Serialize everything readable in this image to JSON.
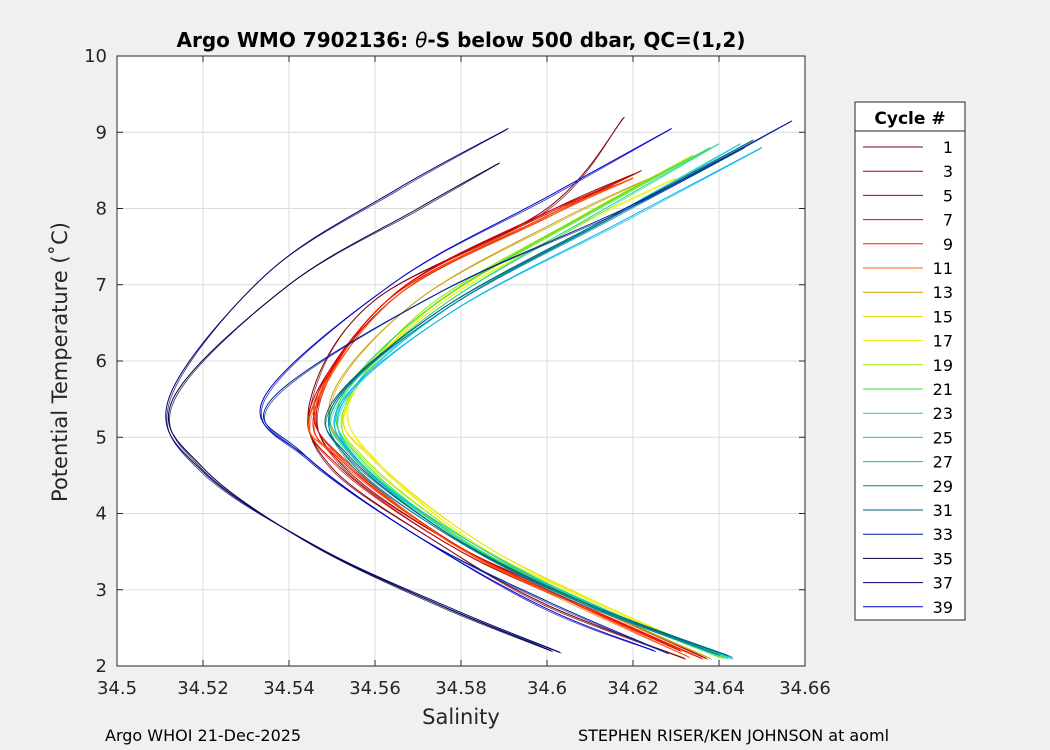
{
  "chart_data": {
    "type": "line",
    "title_prefix": "Argo WMO 7902136: ",
    "title_theta": "θ",
    "title_suffix": "-S below 500 dbar,  QC=(1,2)",
    "xlabel": "Salinity",
    "ylabel": "Potential Temperature (˚C)",
    "xlim": [
      34.5,
      34.66
    ],
    "ylim": [
      2,
      10
    ],
    "xticks": [
      34.5,
      34.52,
      34.54,
      34.56,
      34.58,
      34.6,
      34.62,
      34.64,
      34.66
    ],
    "xtick_labels": [
      "34.5",
      "34.52",
      "34.54",
      "34.56",
      "34.58",
      "34.6",
      "34.62",
      "34.64",
      "34.66"
    ],
    "yticks": [
      2,
      3,
      4,
      5,
      6,
      7,
      8,
      9,
      10
    ],
    "ytick_labels": [
      "2",
      "3",
      "4",
      "5",
      "6",
      "7",
      "8",
      "9",
      "10"
    ],
    "grid": true,
    "legend_title": "Cycle #",
    "legend_position": "right-outside",
    "series": [
      {
        "name": "1",
        "color": "#80000f",
        "points": [
          [
            34.618,
            9.2
          ],
          [
            34.6,
            8.0
          ],
          [
            34.56,
            6.8
          ],
          [
            34.545,
            5.5
          ],
          [
            34.55,
            4.6
          ],
          [
            34.575,
            3.6
          ],
          [
            34.6,
            2.8
          ],
          [
            34.632,
            2.1
          ]
        ]
      },
      {
        "name": "3",
        "color": "#a00000",
        "points": [
          [
            34.62,
            8.45
          ],
          [
            34.6,
            7.95
          ],
          [
            34.565,
            6.9
          ],
          [
            34.547,
            5.5
          ],
          [
            34.553,
            4.6
          ],
          [
            34.58,
            3.55
          ],
          [
            34.61,
            2.8
          ],
          [
            34.637,
            2.1
          ]
        ]
      },
      {
        "name": "5",
        "color": "#c00000",
        "points": [
          [
            34.622,
            8.5
          ],
          [
            34.6,
            7.9
          ],
          [
            34.565,
            6.85
          ],
          [
            34.545,
            5.4
          ],
          [
            34.552,
            4.6
          ],
          [
            34.58,
            3.5
          ],
          [
            34.61,
            2.75
          ],
          [
            34.634,
            2.15
          ]
        ]
      },
      {
        "name": "7",
        "color": "#e00000",
        "points": [
          [
            34.618,
            8.35
          ],
          [
            34.598,
            7.9
          ],
          [
            34.565,
            6.9
          ],
          [
            34.546,
            5.45
          ],
          [
            34.555,
            4.6
          ],
          [
            34.58,
            3.55
          ],
          [
            34.608,
            2.8
          ],
          [
            34.631,
            2.2
          ]
        ]
      },
      {
        "name": "9",
        "color": "#ff1a00",
        "points": [
          [
            34.62,
            8.4
          ],
          [
            34.598,
            7.85
          ],
          [
            34.563,
            6.8
          ],
          [
            34.546,
            5.35
          ],
          [
            34.553,
            4.65
          ],
          [
            34.58,
            3.55
          ],
          [
            34.61,
            2.75
          ],
          [
            34.636,
            2.1
          ]
        ]
      },
      {
        "name": "11",
        "color": "#ff5a00",
        "points": [
          [
            34.62,
            8.4
          ],
          [
            34.6,
            7.9
          ],
          [
            34.565,
            6.85
          ],
          [
            34.545,
            5.3
          ],
          [
            34.553,
            4.7
          ],
          [
            34.578,
            3.6
          ],
          [
            34.605,
            2.85
          ],
          [
            34.633,
            2.12
          ]
        ]
      },
      {
        "name": "13",
        "color": "#c8a000",
        "points": [
          [
            34.626,
            8.45
          ],
          [
            34.603,
            7.85
          ],
          [
            34.57,
            6.8
          ],
          [
            34.55,
            5.55
          ],
          [
            34.556,
            4.7
          ],
          [
            34.582,
            3.6
          ],
          [
            34.61,
            2.8
          ],
          [
            34.638,
            2.1
          ]
        ]
      },
      {
        "name": "15",
        "color": "#e8e000",
        "points": [
          [
            34.628,
            8.5
          ],
          [
            34.605,
            7.8
          ],
          [
            34.572,
            6.65
          ],
          [
            34.553,
            5.4
          ],
          [
            34.56,
            4.7
          ],
          [
            34.585,
            3.6
          ],
          [
            34.615,
            2.75
          ],
          [
            34.641,
            2.1
          ]
        ]
      },
      {
        "name": "17",
        "color": "#f0f000",
        "points": [
          [
            34.63,
            8.4
          ],
          [
            34.606,
            7.75
          ],
          [
            34.574,
            6.7
          ],
          [
            34.554,
            5.5
          ],
          [
            34.561,
            4.65
          ],
          [
            34.585,
            3.55
          ],
          [
            34.613,
            2.8
          ],
          [
            34.64,
            2.13
          ]
        ]
      },
      {
        "name": "19",
        "color": "#a0e800",
        "points": [
          [
            34.634,
            8.7
          ],
          [
            34.608,
            7.9
          ],
          [
            34.572,
            6.7
          ],
          [
            34.553,
            5.4
          ],
          [
            34.558,
            4.7
          ],
          [
            34.583,
            3.6
          ],
          [
            34.613,
            2.75
          ],
          [
            34.641,
            2.12
          ]
        ]
      },
      {
        "name": "21",
        "color": "#40e040",
        "points": [
          [
            34.638,
            8.8
          ],
          [
            34.61,
            7.95
          ],
          [
            34.574,
            6.75
          ],
          [
            34.552,
            5.5
          ],
          [
            34.557,
            4.7
          ],
          [
            34.582,
            3.6
          ],
          [
            34.612,
            2.78
          ],
          [
            34.64,
            2.12
          ]
        ]
      },
      {
        "name": "23",
        "color": "#20d890",
        "points": [
          [
            34.64,
            8.85
          ],
          [
            34.612,
            7.95
          ],
          [
            34.575,
            6.7
          ],
          [
            34.551,
            5.45
          ],
          [
            34.555,
            4.75
          ],
          [
            34.58,
            3.65
          ],
          [
            34.61,
            2.8
          ],
          [
            34.642,
            2.1
          ]
        ]
      },
      {
        "name": "25",
        "color": "#00d0d0",
        "points": [
          [
            34.645,
            8.85
          ],
          [
            34.615,
            7.9
          ],
          [
            34.577,
            6.7
          ],
          [
            34.553,
            5.5
          ],
          [
            34.556,
            4.7
          ],
          [
            34.58,
            3.7
          ],
          [
            34.61,
            2.82
          ],
          [
            34.643,
            2.1
          ]
        ]
      },
      {
        "name": "27",
        "color": "#00b4e8",
        "points": [
          [
            34.65,
            8.8
          ],
          [
            34.618,
            7.85
          ],
          [
            34.578,
            6.65
          ],
          [
            34.552,
            5.45
          ],
          [
            34.556,
            4.7
          ],
          [
            34.578,
            3.7
          ],
          [
            34.608,
            2.85
          ],
          [
            34.643,
            2.12
          ]
        ]
      },
      {
        "name": "29",
        "color": "#0080a0",
        "points": [
          [
            34.646,
            8.8
          ],
          [
            34.614,
            7.85
          ],
          [
            34.577,
            6.7
          ],
          [
            34.551,
            5.5
          ],
          [
            34.554,
            4.7
          ],
          [
            34.576,
            3.75
          ],
          [
            34.605,
            2.9
          ],
          [
            34.64,
            2.15
          ]
        ]
      },
      {
        "name": "31",
        "color": "#006070",
        "points": [
          [
            34.648,
            8.9
          ],
          [
            34.615,
            7.9
          ],
          [
            34.576,
            6.7
          ],
          [
            34.55,
            5.45
          ],
          [
            34.554,
            4.75
          ],
          [
            34.578,
            3.7
          ],
          [
            34.608,
            2.85
          ],
          [
            34.642,
            2.14
          ]
        ]
      },
      {
        "name": "33",
        "color": "#002098",
        "points": [
          [
            34.657,
            9.15
          ],
          [
            34.62,
            8.05
          ],
          [
            34.575,
            6.9
          ],
          [
            34.536,
            5.5
          ],
          [
            34.543,
            4.8
          ],
          [
            34.57,
            3.7
          ],
          [
            34.6,
            2.85
          ],
          [
            34.628,
            2.17
          ]
        ]
      },
      {
        "name": "35",
        "color": "#000040",
        "points": [
          [
            34.589,
            8.6
          ],
          [
            34.57,
            8.0
          ],
          [
            34.54,
            7.0
          ],
          [
            34.513,
            5.5
          ],
          [
            34.52,
            4.6
          ],
          [
            34.545,
            3.6
          ],
          [
            34.575,
            2.8
          ],
          [
            34.601,
            2.2
          ]
        ]
      },
      {
        "name": "37",
        "color": "#00006e",
        "points": [
          [
            34.591,
            9.05
          ],
          [
            34.565,
            8.25
          ],
          [
            34.535,
            7.15
          ],
          [
            34.512,
            5.5
          ],
          [
            34.52,
            4.55
          ],
          [
            34.547,
            3.55
          ],
          [
            34.578,
            2.75
          ],
          [
            34.603,
            2.18
          ]
        ]
      },
      {
        "name": "39",
        "color": "#0000c8",
        "points": [
          [
            34.629,
            9.05
          ],
          [
            34.6,
            8.15
          ],
          [
            34.565,
            7.05
          ],
          [
            34.534,
            5.5
          ],
          [
            34.545,
            4.7
          ],
          [
            34.57,
            3.7
          ],
          [
            34.6,
            2.75
          ],
          [
            34.625,
            2.2
          ]
        ]
      }
    ]
  },
  "footer": {
    "left": "Argo WHOI 21-Dec-2025",
    "right": "STEPHEN RISER/KEN JOHNSON at aoml"
  }
}
